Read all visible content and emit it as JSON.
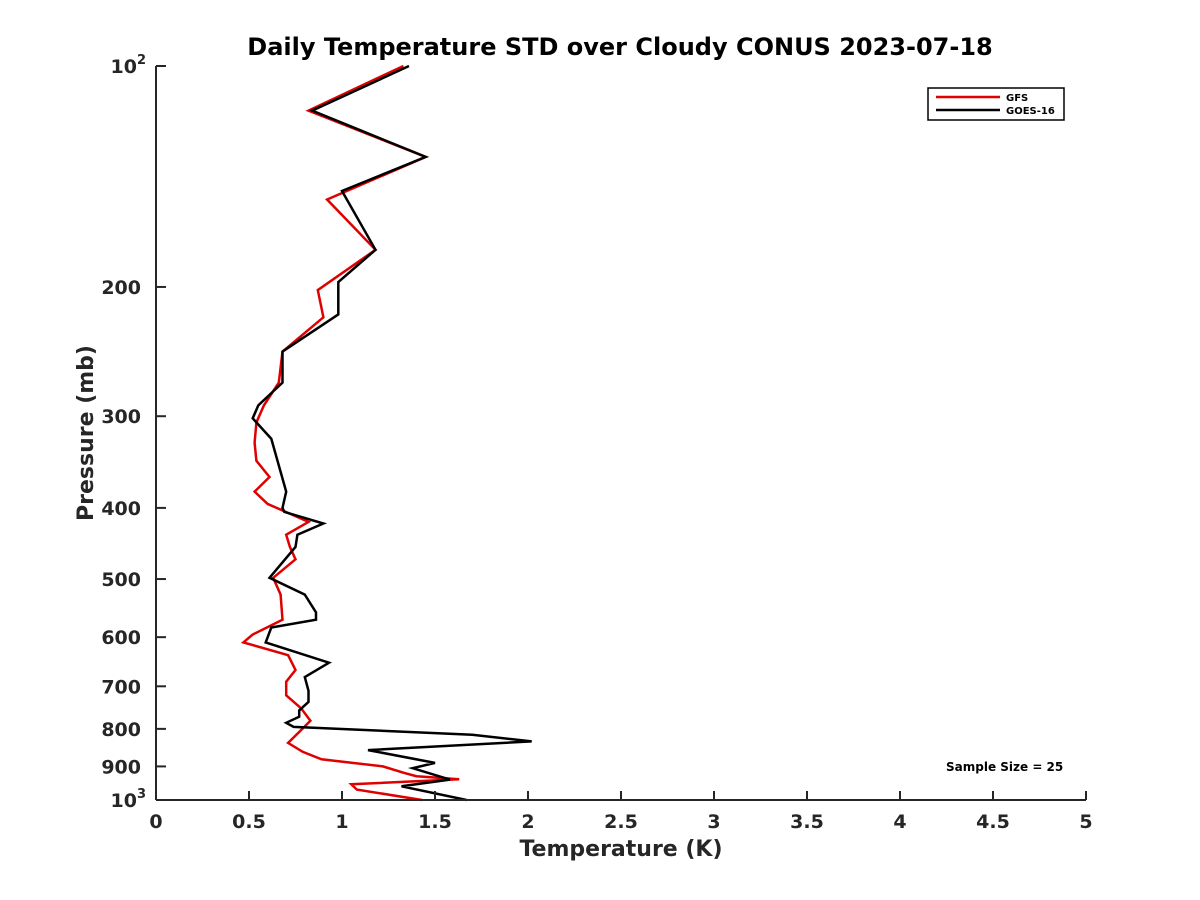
{
  "chart_data": {
    "type": "line",
    "title": "Daily Temperature STD over Cloudy CONUS 2023-07-18",
    "xlabel": "Temperature (K)",
    "ylabel": "Pressure (mb)",
    "xlim": [
      0,
      5
    ],
    "ylim": [
      100,
      1000
    ],
    "yscale": "log",
    "y_reversed": true,
    "x_ticks": [
      0,
      0.5,
      1,
      1.5,
      2,
      2.5,
      3,
      3.5,
      4,
      4.5,
      5
    ],
    "x_tick_labels": [
      "0",
      "0.5",
      "1",
      "1.5",
      "2",
      "2.5",
      "3",
      "3.5",
      "4",
      "4.5",
      "5"
    ],
    "y_ticks": [
      {
        "value": 100,
        "base": "10",
        "exp": "2"
      },
      {
        "value": 200,
        "label": "200"
      },
      {
        "value": 300,
        "label": "300"
      },
      {
        "value": 400,
        "label": "400"
      },
      {
        "value": 500,
        "label": "500"
      },
      {
        "value": 600,
        "label": "600"
      },
      {
        "value": 700,
        "label": "700"
      },
      {
        "value": 800,
        "label": "800"
      },
      {
        "value": 900,
        "label": "900"
      },
      {
        "value": 1000,
        "base": "10",
        "exp": "3"
      }
    ],
    "legend_position": "top-right",
    "grid": false,
    "annotation": "Sample Size = 25",
    "series": [
      {
        "name": "GFS",
        "color": "#e00000",
        "x": [
          1.33,
          0.82,
          1.45,
          0.92,
          1.18,
          0.87,
          0.9,
          0.68,
          0.66,
          0.58,
          0.54,
          0.53,
          0.54,
          0.61,
          0.53,
          0.6,
          0.82,
          0.7,
          0.72,
          0.75,
          0.63,
          0.67,
          0.68,
          0.52,
          0.47,
          0.71,
          0.75,
          0.7,
          0.7,
          0.78,
          0.83,
          0.77,
          0.71,
          0.79,
          0.89,
          1.22,
          1.33,
          1.4,
          1.63,
          1.05,
          1.08,
          1.43
        ],
        "y": [
          100,
          115,
          133,
          152,
          178,
          202,
          220,
          245,
          270,
          290,
          306,
          326,
          345,
          363,
          380,
          395,
          418,
          435,
          452,
          470,
          498,
          525,
          568,
          595,
          610,
          635,
          665,
          690,
          720,
          750,
          780,
          808,
          836,
          860,
          880,
          900,
          918,
          928,
          937,
          952,
          968,
          1000
        ]
      },
      {
        "name": "GOES-16",
        "color": "#000000",
        "x": [
          1.36,
          0.84,
          1.45,
          1.0,
          1.18,
          0.98,
          0.98,
          0.68,
          0.68,
          0.55,
          0.52,
          0.62,
          0.7,
          0.68,
          0.69,
          0.9,
          0.76,
          0.75,
          0.61,
          0.8,
          0.86,
          0.86,
          0.62,
          0.59,
          0.93,
          0.8,
          0.82,
          0.82,
          0.77,
          0.77,
          0.7,
          0.74,
          1.7,
          2.02,
          1.14,
          1.5,
          1.38,
          1.58,
          1.32,
          1.67
        ],
        "y": [
          100,
          115,
          133,
          148,
          178,
          197,
          218,
          245,
          270,
          290,
          302,
          322,
          380,
          400,
          405,
          420,
          435,
          452,
          498,
          525,
          555,
          568,
          582,
          610,
          650,
          680,
          710,
          735,
          755,
          770,
          785,
          795,
          815,
          832,
          855,
          890,
          905,
          938,
          958,
          1000
        ]
      }
    ]
  }
}
